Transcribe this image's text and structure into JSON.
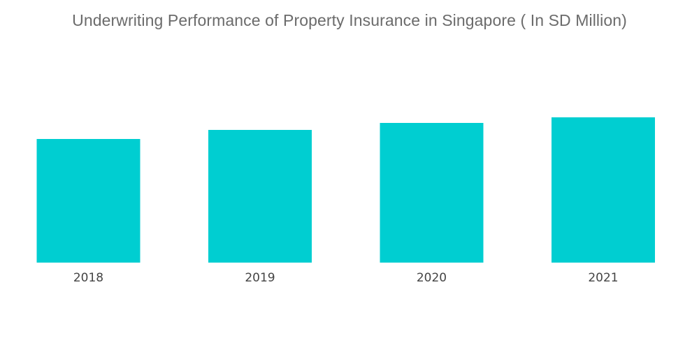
{
  "chart_data": {
    "type": "bar",
    "title": "Underwriting Performance of Property Insurance in Singapore ( In SD Million)",
    "categories": [
      "2018",
      "2019",
      "2020",
      "2021"
    ],
    "values": [
      177,
      190,
      200,
      208
    ],
    "xlabel": "",
    "ylabel": "",
    "ylim": [
      0,
      250
    ],
    "grid": false,
    "bar_color": "#00CED1",
    "title_color": "#6B6B6B",
    "axis_label_color": "#444444"
  }
}
